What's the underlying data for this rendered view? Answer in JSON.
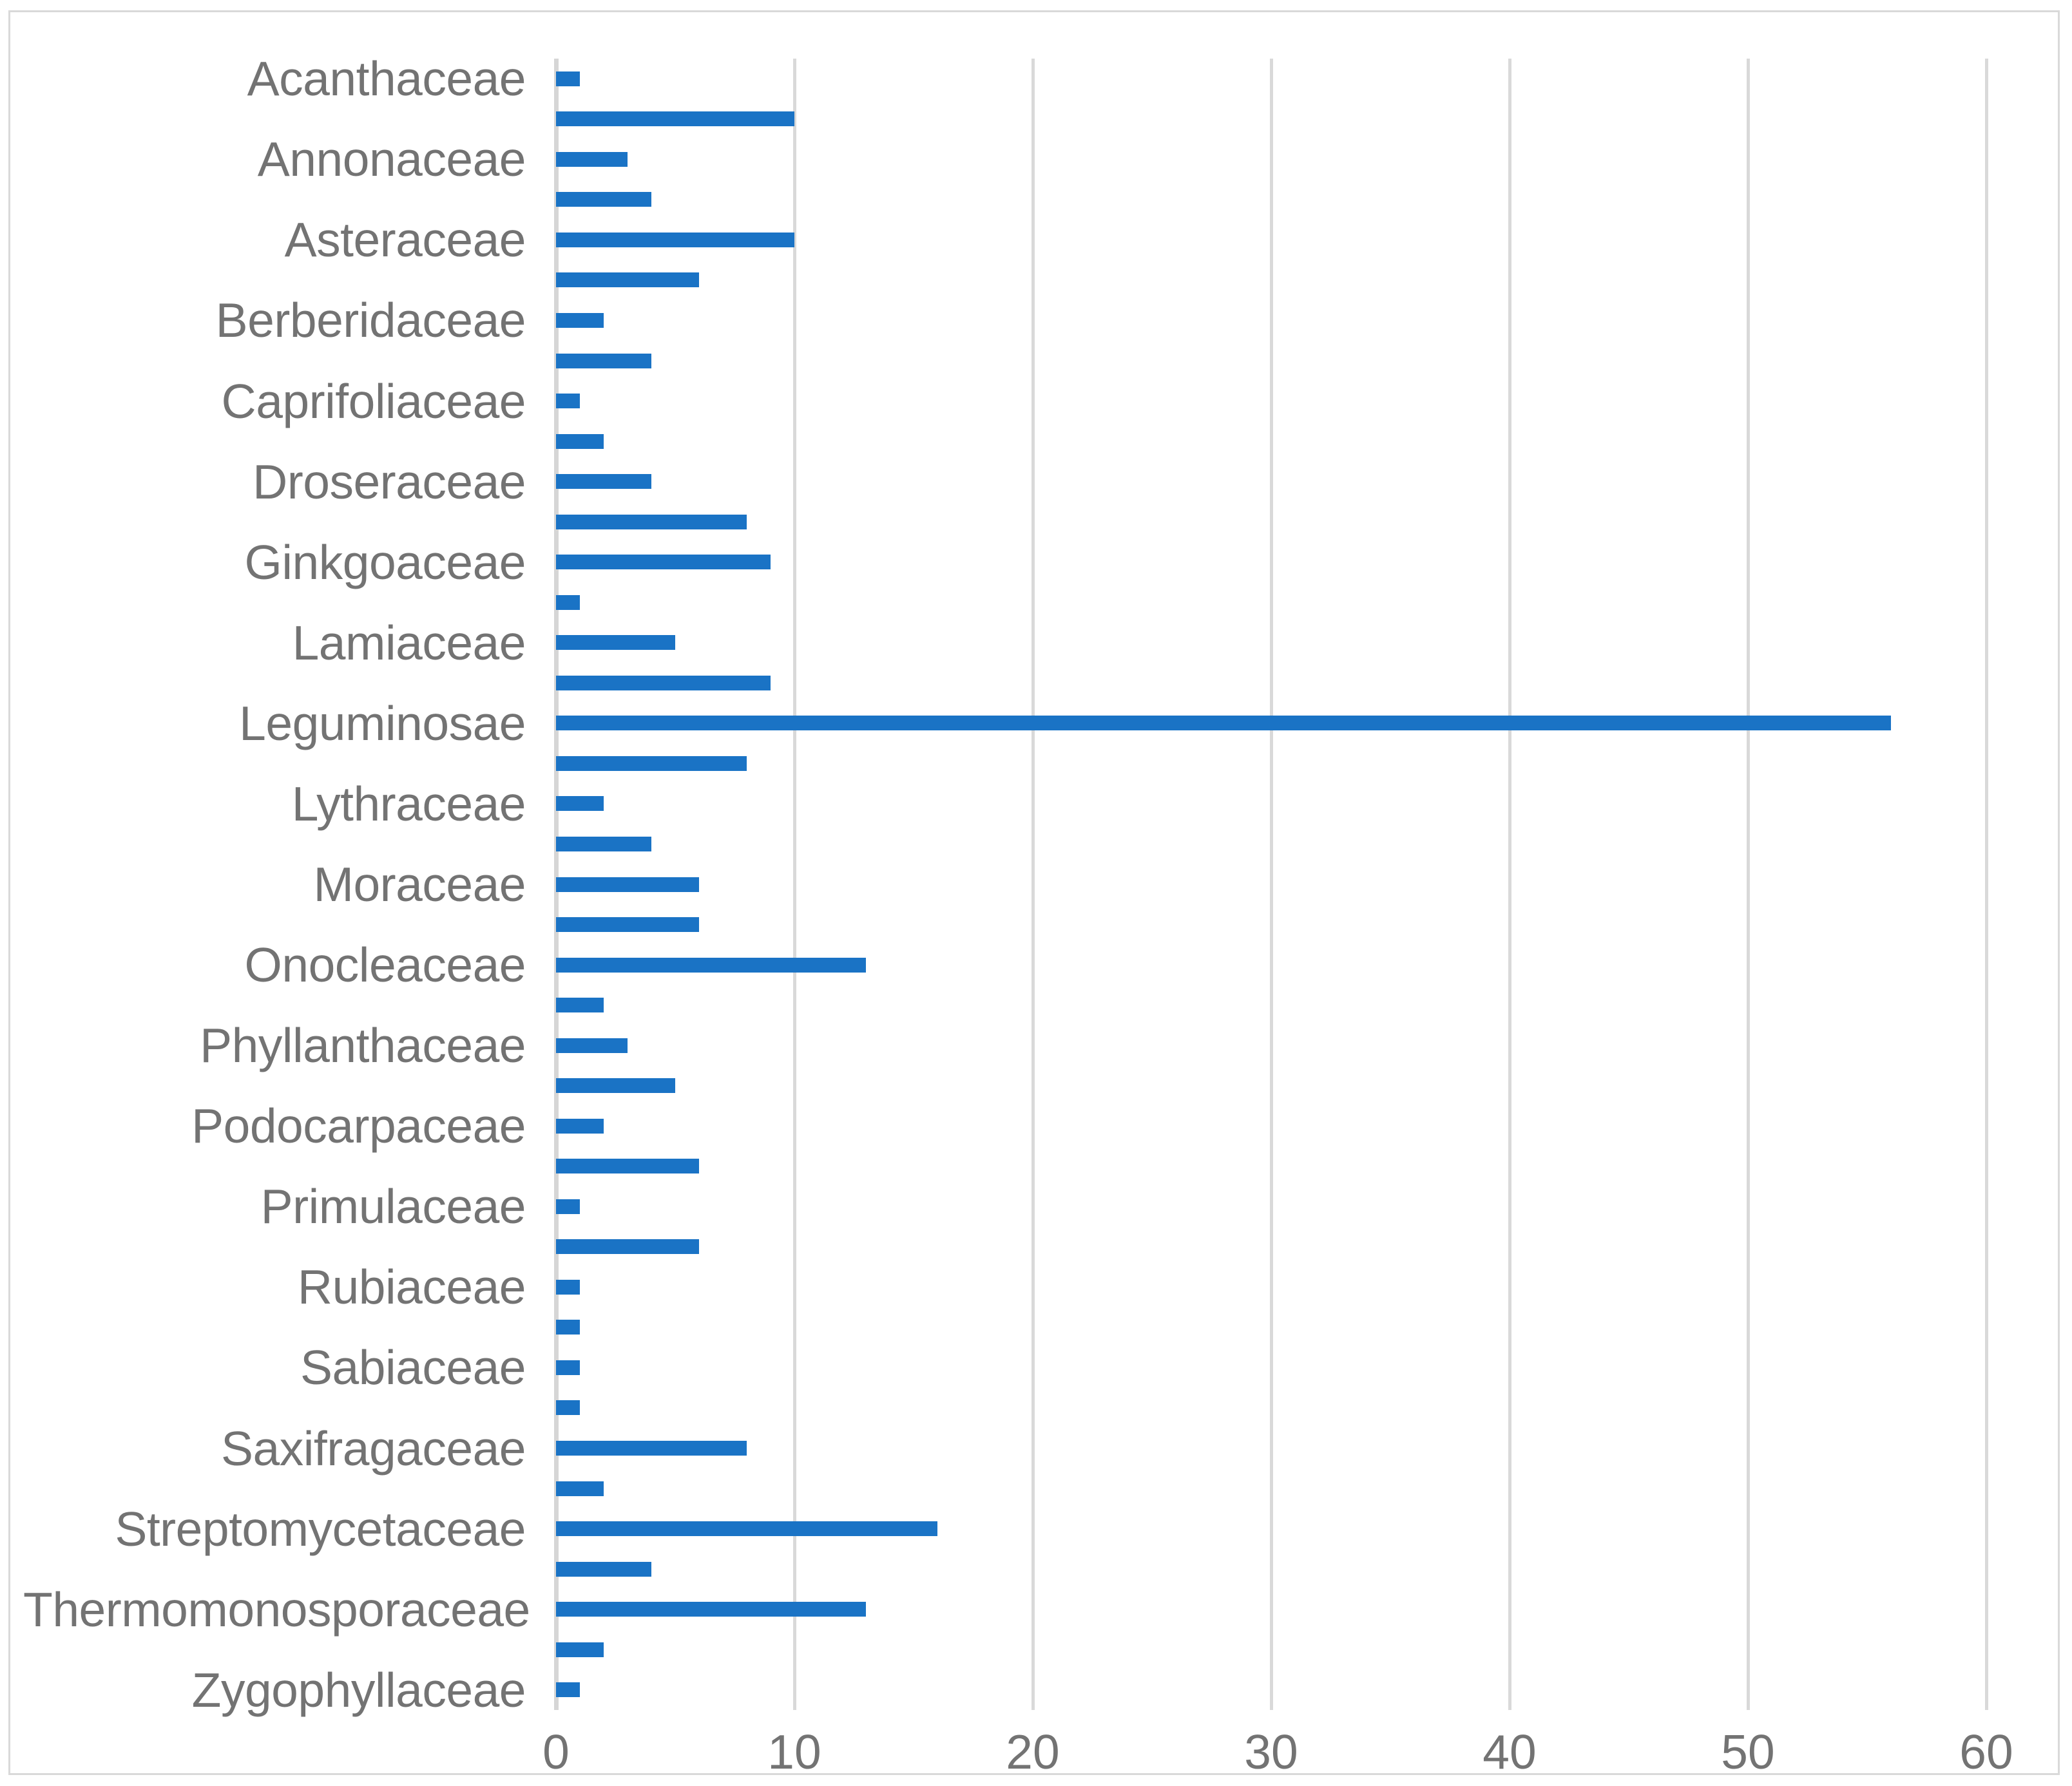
{
  "chart_data": {
    "type": "bar",
    "orientation": "horizontal",
    "title": "",
    "xlabel": "",
    "ylabel": "",
    "legend": "none",
    "grid": "vertical-only",
    "xlim": [
      0,
      60
    ],
    "x_tick_values": [
      0,
      10,
      20,
      30,
      40,
      50,
      60
    ],
    "x_tick_labels": [
      "0",
      "10",
      "20",
      "30",
      "40",
      "50",
      "60"
    ],
    "note": "Alternating categories are unlabeled (empty string) exactly as rendered in the source chart",
    "categories": [
      "Acanthaceae",
      "",
      "Annonaceae",
      "",
      "Asteraceae",
      "",
      "Berberidaceae",
      "",
      "Caprifoliaceae",
      "",
      "Droseraceae",
      "",
      "Ginkgoaceae",
      "",
      "Lamiaceae",
      "",
      "Leguminosae",
      "",
      "Lythraceae",
      "",
      "Moraceae",
      "",
      "Onocleaceae",
      "",
      "Phyllanthaceae",
      "",
      "Podocarpaceae",
      "",
      "Primulaceae",
      "",
      "Rubiaceae",
      "",
      "Sabiaceae",
      "",
      "Saxifragaceae",
      "",
      "Streptomycetaceae",
      "",
      "Thermomonosporaceae",
      "",
      "Zygophyllaceae"
    ],
    "values": [
      1,
      10,
      3,
      4,
      10,
      6,
      2,
      4,
      1,
      2,
      4,
      8,
      9,
      1,
      5,
      9,
      56,
      8,
      2,
      4,
      6,
      6,
      13,
      2,
      3,
      5,
      2,
      6,
      1,
      6,
      1,
      1,
      1,
      1,
      8,
      2,
      16,
      4,
      13,
      2,
      1
    ],
    "colors": {
      "bar": "#1A73C5",
      "gridline": "#D9D9D9",
      "axis_line": "#D6D6D6",
      "text": "#737373",
      "chart_border": "#D9D9D9",
      "background": "#FFFFFF"
    }
  }
}
